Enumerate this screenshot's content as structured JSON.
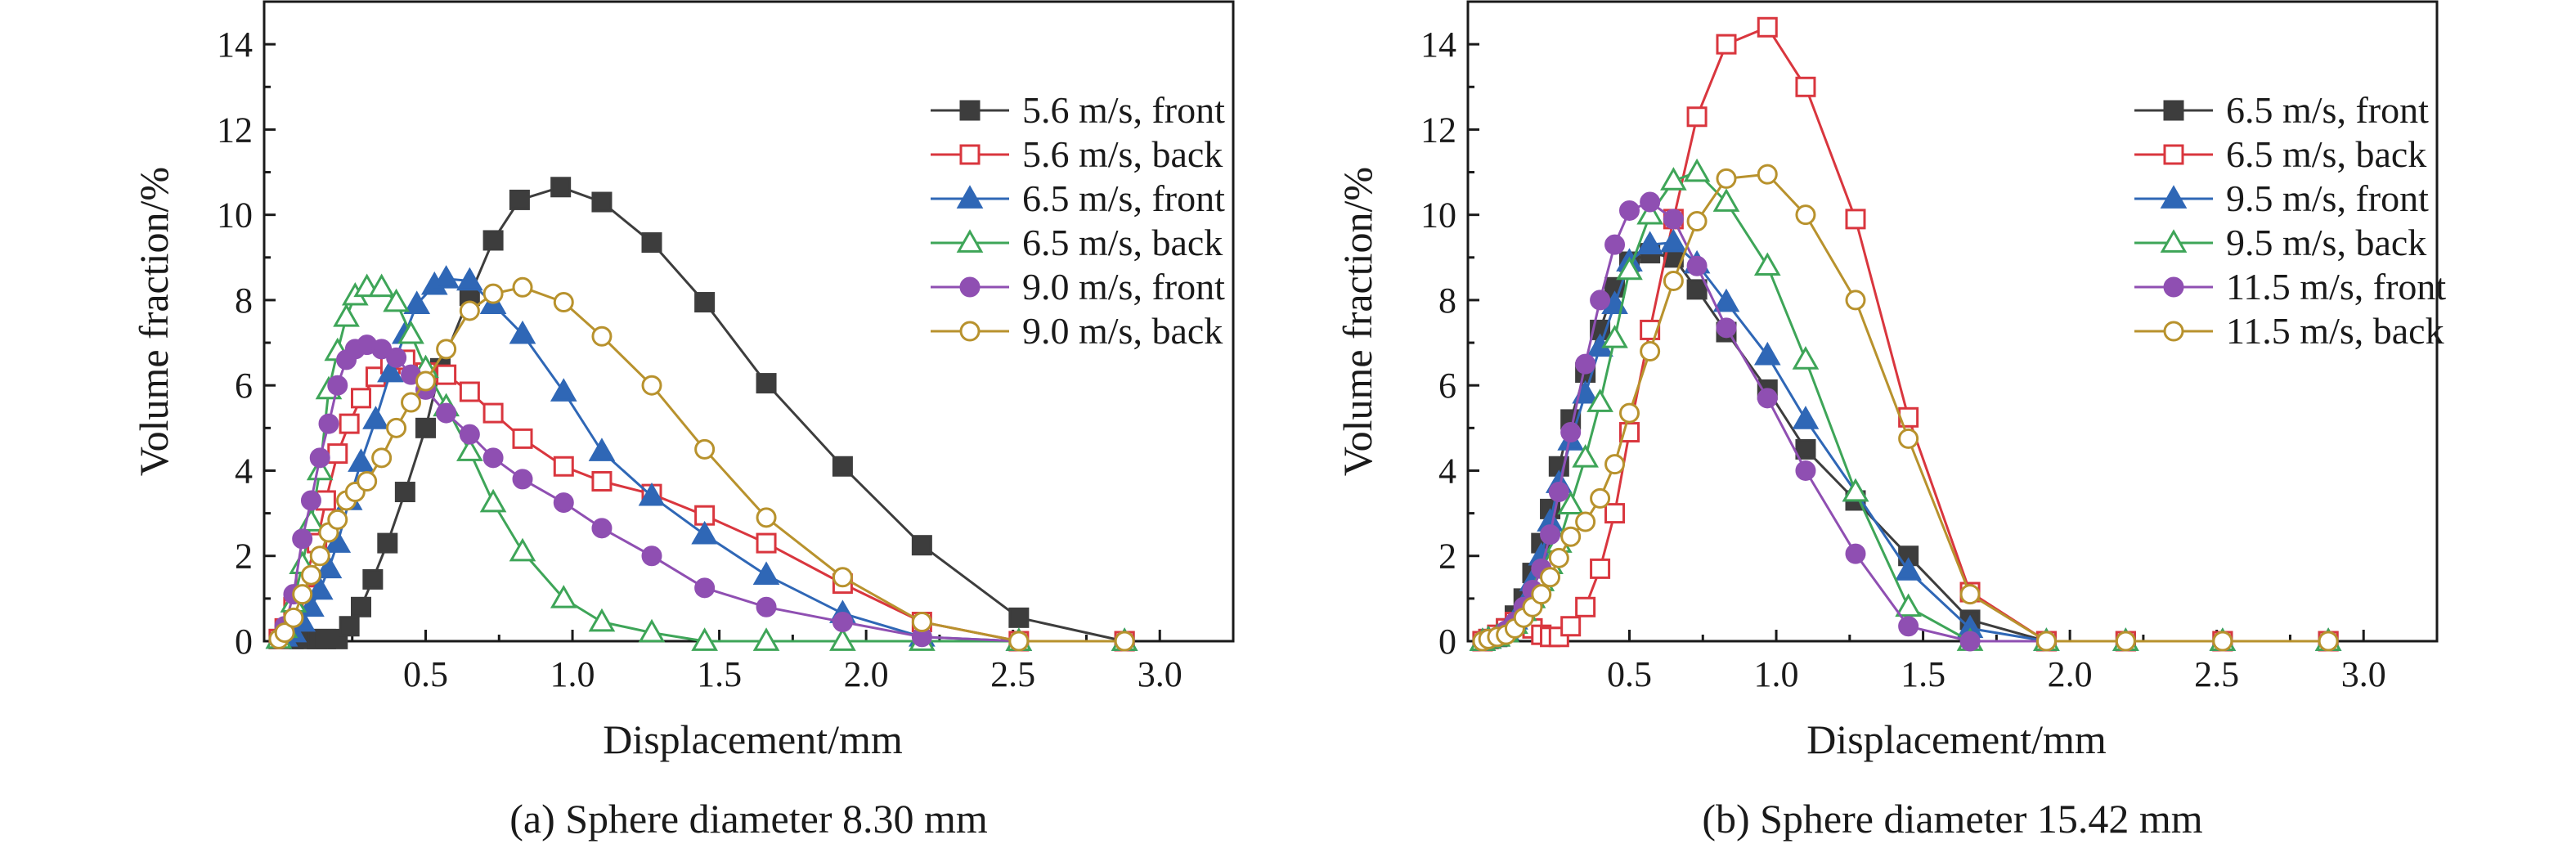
{
  "chart_data": [
    {
      "type": "line",
      "caption": "(a) Sphere diameter 8.30 mm",
      "xlabel": "Displacement/mm",
      "ylabel": "Volume fraction/%",
      "xlim": [
        -0.05,
        3.25
      ],
      "ylim": [
        0,
        15
      ],
      "xticks": [
        "0.5",
        "1.0",
        "1.5",
        "2.0",
        "2.5",
        "3.0"
      ],
      "yticks": [
        "0",
        "2",
        "4",
        "6",
        "8",
        "10",
        "12",
        "14"
      ],
      "legend_position": "top-right",
      "series": [
        {
          "name": "5.6 m/s, front",
          "color": "#3d3d3d",
          "marker": "square",
          "filled": true,
          "x": [
            0.0,
            0.02,
            0.05,
            0.09,
            0.13,
            0.16,
            0.2,
            0.24,
            0.28,
            0.32,
            0.37,
            0.43,
            0.5,
            0.55,
            0.65,
            0.73,
            0.82,
            0.96,
            1.1,
            1.27,
            1.45,
            1.66,
            1.92,
            2.19,
            2.52,
            2.88
          ],
          "y": [
            0.05,
            0.05,
            0.05,
            0.05,
            0.05,
            0.05,
            0.05,
            0.35,
            0.8,
            1.45,
            2.3,
            3.5,
            5.0,
            6.4,
            8.1,
            9.4,
            10.35,
            10.65,
            10.3,
            9.35,
            7.95,
            6.05,
            4.1,
            2.25,
            0.55,
            0.0
          ]
        },
        {
          "name": "5.6 m/s, back",
          "color": "#d9363e",
          "marker": "square",
          "filled": false,
          "x": [
            0.0,
            0.02,
            0.05,
            0.09,
            0.13,
            0.16,
            0.2,
            0.24,
            0.28,
            0.33,
            0.38,
            0.43,
            0.5,
            0.57,
            0.65,
            0.73,
            0.83,
            0.97,
            1.1,
            1.27,
            1.45,
            1.66,
            1.92,
            2.19,
            2.52,
            2.88
          ],
          "y": [
            0.05,
            0.3,
            0.8,
            1.5,
            2.3,
            3.3,
            4.4,
            5.1,
            5.7,
            6.2,
            6.5,
            6.6,
            6.3,
            6.25,
            5.85,
            5.35,
            4.75,
            4.1,
            3.75,
            3.45,
            2.95,
            2.3,
            1.35,
            0.45,
            0.0,
            0.0
          ]
        },
        {
          "name": "6.5 m/s, front",
          "color": "#2f67b6",
          "marker": "triangle",
          "filled": true,
          "x": [
            0.0,
            0.02,
            0.05,
            0.08,
            0.11,
            0.14,
            0.17,
            0.2,
            0.24,
            0.28,
            0.33,
            0.38,
            0.43,
            0.47,
            0.53,
            0.57,
            0.65,
            0.73,
            0.83,
            0.97,
            1.1,
            1.27,
            1.45,
            1.66,
            1.92,
            2.19,
            2.52,
            2.88
          ],
          "y": [
            0.05,
            0.1,
            0.2,
            0.45,
            0.8,
            1.2,
            1.7,
            2.3,
            3.3,
            4.2,
            5.2,
            6.3,
            7.2,
            7.9,
            8.35,
            8.5,
            8.45,
            7.9,
            7.2,
            5.85,
            4.45,
            3.4,
            2.5,
            1.55,
            0.65,
            0.1,
            0.0,
            0.0
          ]
        },
        {
          "name": "6.5 m/s, back",
          "color": "#3ea558",
          "marker": "triangle",
          "filled": false,
          "x": [
            0.0,
            0.02,
            0.05,
            0.08,
            0.11,
            0.14,
            0.17,
            0.2,
            0.23,
            0.26,
            0.3,
            0.35,
            0.4,
            0.45,
            0.5,
            0.57,
            0.65,
            0.73,
            0.83,
            0.97,
            1.1,
            1.27,
            1.45,
            1.66,
            1.92,
            2.19,
            2.52,
            2.88
          ],
          "y": [
            0.05,
            0.3,
            0.9,
            1.8,
            2.8,
            4.0,
            5.9,
            6.8,
            7.6,
            8.1,
            8.3,
            8.3,
            7.95,
            7.2,
            6.4,
            5.5,
            4.45,
            3.25,
            2.1,
            1.0,
            0.45,
            0.2,
            0.0,
            0.0,
            0.0,
            0.0,
            0.0,
            0.0
          ]
        },
        {
          "name": "9.0 m/s, front",
          "color": "#8f4fb2",
          "marker": "circle",
          "filled": true,
          "x": [
            0.0,
            0.02,
            0.05,
            0.08,
            0.11,
            0.14,
            0.17,
            0.2,
            0.23,
            0.26,
            0.3,
            0.35,
            0.4,
            0.45,
            0.5,
            0.57,
            0.65,
            0.73,
            0.83,
            0.97,
            1.1,
            1.27,
            1.45,
            1.66,
            1.92,
            2.19,
            2.52,
            2.88
          ],
          "y": [
            0.05,
            0.35,
            1.1,
            2.4,
            3.3,
            4.3,
            5.1,
            6.0,
            6.6,
            6.85,
            6.95,
            6.85,
            6.65,
            6.25,
            5.9,
            5.35,
            4.85,
            4.3,
            3.8,
            3.25,
            2.65,
            2.0,
            1.25,
            0.8,
            0.45,
            0.1,
            0.0,
            0.0
          ]
        },
        {
          "name": "9.0 m/s, back",
          "color": "#b8922d",
          "marker": "circle",
          "filled": false,
          "x": [
            0.0,
            0.02,
            0.05,
            0.08,
            0.11,
            0.14,
            0.17,
            0.2,
            0.23,
            0.26,
            0.3,
            0.35,
            0.4,
            0.45,
            0.5,
            0.57,
            0.65,
            0.73,
            0.83,
            0.97,
            1.1,
            1.27,
            1.45,
            1.66,
            1.92,
            2.19,
            2.52,
            2.88
          ],
          "y": [
            0.05,
            0.2,
            0.55,
            1.1,
            1.55,
            2.0,
            2.55,
            2.85,
            3.3,
            3.5,
            3.75,
            4.3,
            5.0,
            5.6,
            6.1,
            6.85,
            7.75,
            8.15,
            8.3,
            7.95,
            7.15,
            6.0,
            4.5,
            2.9,
            1.5,
            0.45,
            0.0,
            0.0
          ]
        }
      ]
    },
    {
      "type": "line",
      "caption": "(b) Sphere diameter 15.42 mm",
      "xlabel": "Displacement/mm",
      "ylabel": "Volume fraction/%",
      "xlim": [
        -0.05,
        3.25
      ],
      "ylim": [
        0,
        15
      ],
      "xticks": [
        "0.5",
        "1.0",
        "1.5",
        "2.0",
        "2.5",
        "3.0"
      ],
      "yticks": [
        "0",
        "2",
        "4",
        "6",
        "8",
        "10",
        "12",
        "14"
      ],
      "legend_position": "top-right",
      "series": [
        {
          "name": "6.5 m/s, front",
          "color": "#3d3d3d",
          "marker": "square",
          "filled": true,
          "x": [
            0.0,
            0.02,
            0.05,
            0.08,
            0.11,
            0.14,
            0.17,
            0.2,
            0.23,
            0.26,
            0.3,
            0.35,
            0.4,
            0.45,
            0.5,
            0.57,
            0.65,
            0.73,
            0.83,
            0.97,
            1.1,
            1.27,
            1.45,
            1.66,
            1.92,
            2.19,
            2.52,
            2.88
          ],
          "y": [
            0.0,
            0.05,
            0.1,
            0.3,
            0.6,
            1.0,
            1.6,
            2.3,
            3.1,
            4.1,
            5.2,
            6.3,
            7.3,
            8.3,
            8.9,
            9.1,
            9.0,
            8.25,
            7.25,
            5.9,
            4.5,
            3.3,
            2.0,
            0.5,
            0.0,
            0.0,
            0.0,
            0.0
          ]
        },
        {
          "name": "6.5 m/s, back",
          "color": "#d9363e",
          "marker": "square",
          "filled": false,
          "x": [
            0.0,
            0.02,
            0.05,
            0.08,
            0.11,
            0.14,
            0.17,
            0.2,
            0.23,
            0.26,
            0.3,
            0.35,
            0.4,
            0.45,
            0.5,
            0.57,
            0.65,
            0.73,
            0.83,
            0.97,
            1.1,
            1.27,
            1.45,
            1.66,
            1.92,
            2.19,
            2.52,
            2.88
          ],
          "y": [
            0.0,
            0.05,
            0.15,
            0.3,
            0.45,
            0.5,
            0.3,
            0.15,
            0.1,
            0.1,
            0.35,
            0.8,
            1.7,
            3.0,
            4.9,
            7.3,
            9.9,
            12.3,
            14.0,
            14.4,
            13.0,
            9.9,
            5.25,
            1.15,
            0.0,
            0.0,
            0.0,
            0.0
          ]
        },
        {
          "name": "9.5 m/s, front",
          "color": "#2f67b6",
          "marker": "triangle",
          "filled": true,
          "x": [
            0.0,
            0.02,
            0.05,
            0.08,
            0.11,
            0.14,
            0.17,
            0.2,
            0.23,
            0.26,
            0.3,
            0.35,
            0.4,
            0.45,
            0.5,
            0.57,
            0.65,
            0.73,
            0.83,
            0.97,
            1.1,
            1.27,
            1.45,
            1.66,
            1.92,
            2.19,
            2.52,
            2.88
          ],
          "y": [
            0.0,
            0.05,
            0.1,
            0.25,
            0.5,
            0.85,
            1.4,
            2.0,
            2.8,
            3.7,
            4.7,
            5.8,
            6.9,
            7.9,
            8.9,
            9.3,
            9.35,
            8.85,
            7.95,
            6.7,
            5.2,
            3.5,
            1.65,
            0.3,
            0.0,
            0.0,
            0.0,
            0.0
          ]
        },
        {
          "name": "9.5 m/s, back",
          "color": "#3ea558",
          "marker": "triangle",
          "filled": false,
          "x": [
            0.0,
            0.02,
            0.05,
            0.08,
            0.11,
            0.14,
            0.17,
            0.2,
            0.23,
            0.26,
            0.3,
            0.35,
            0.4,
            0.45,
            0.5,
            0.57,
            0.65,
            0.73,
            0.83,
            0.97,
            1.1,
            1.27,
            1.45,
            1.66,
            1.92,
            2.19,
            2.52,
            2.88
          ],
          "y": [
            0.0,
            0.05,
            0.1,
            0.2,
            0.4,
            0.7,
            1.0,
            1.4,
            1.8,
            2.3,
            3.2,
            4.3,
            5.6,
            7.1,
            8.7,
            10.0,
            10.8,
            11.0,
            10.3,
            8.8,
            6.6,
            3.5,
            0.8,
            0.0,
            0.0,
            0.0,
            0.0,
            0.0
          ]
        },
        {
          "name": "11.5 m/s, front",
          "color": "#8f4fb2",
          "marker": "circle",
          "filled": true,
          "x": [
            0.0,
            0.02,
            0.05,
            0.08,
            0.11,
            0.14,
            0.17,
            0.2,
            0.23,
            0.26,
            0.3,
            0.35,
            0.4,
            0.45,
            0.5,
            0.57,
            0.65,
            0.73,
            0.83,
            0.97,
            1.1,
            1.27,
            1.45,
            1.66,
            1.92,
            2.19,
            2.52,
            2.88
          ],
          "y": [
            0.0,
            0.05,
            0.1,
            0.25,
            0.45,
            0.8,
            1.2,
            1.7,
            2.5,
            3.5,
            4.9,
            6.5,
            8.0,
            9.3,
            10.1,
            10.3,
            9.9,
            8.8,
            7.35,
            5.7,
            4.0,
            2.05,
            0.35,
            0.0,
            0.0,
            0.0,
            0.0,
            0.0
          ]
        },
        {
          "name": "11.5 m/s, back",
          "color": "#b8922d",
          "marker": "circle",
          "filled": false,
          "x": [
            0.0,
            0.02,
            0.05,
            0.08,
            0.11,
            0.14,
            0.17,
            0.2,
            0.23,
            0.26,
            0.3,
            0.35,
            0.4,
            0.45,
            0.5,
            0.57,
            0.65,
            0.73,
            0.83,
            0.97,
            1.1,
            1.27,
            1.45,
            1.66,
            1.92,
            2.19,
            2.52,
            2.88
          ],
          "y": [
            0.0,
            0.05,
            0.1,
            0.15,
            0.3,
            0.55,
            0.8,
            1.1,
            1.5,
            1.95,
            2.45,
            2.8,
            3.35,
            4.15,
            5.35,
            6.8,
            8.45,
            9.85,
            10.85,
            10.95,
            10.0,
            8.0,
            4.75,
            1.1,
            0.0,
            0.0,
            0.0,
            0.0
          ]
        }
      ]
    }
  ]
}
